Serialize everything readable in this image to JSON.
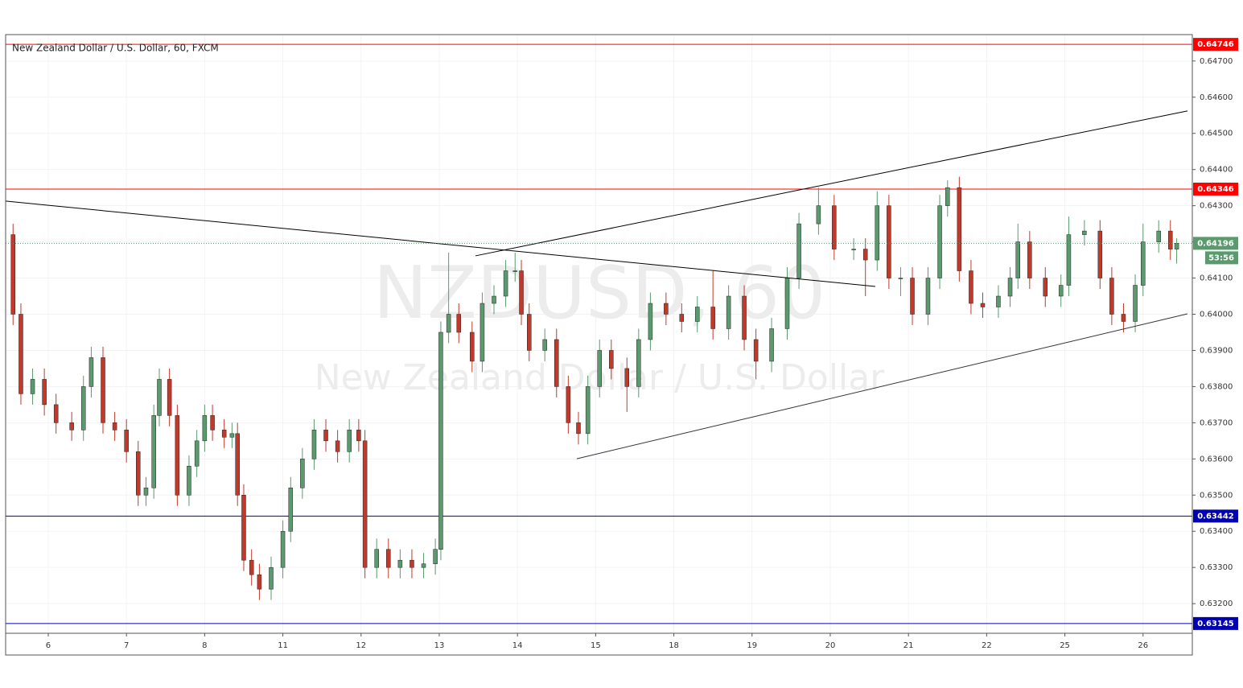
{
  "chart_data": {
    "type": "candlestick",
    "title": "New Zealand Dollar / U.S. Dollar, 60, FXCM",
    "watermark": "NZDUSD, 60",
    "watermark_subtitle": "New Zealand Dollar / U.S. Dollar",
    "up_color": "#5a9a6e",
    "down_color": "#c0392b",
    "grid": true,
    "xlim": [
      -0.545,
      14.63
    ],
    "xticks": [
      {
        "value": 0,
        "label": "6"
      },
      {
        "value": 1,
        "label": "7"
      },
      {
        "value": 2,
        "label": "8"
      },
      {
        "value": 3,
        "label": "11"
      },
      {
        "value": 4,
        "label": "12"
      },
      {
        "value": 5,
        "label": "13"
      },
      {
        "value": 6,
        "label": "14"
      },
      {
        "value": 7,
        "label": "15"
      },
      {
        "value": 8,
        "label": "18"
      },
      {
        "value": 9,
        "label": "19"
      },
      {
        "value": 10,
        "label": "20"
      },
      {
        "value": 11,
        "label": "21"
      },
      {
        "value": 12,
        "label": "22"
      },
      {
        "value": 13,
        "label": "25"
      },
      {
        "value": 14,
        "label": "26"
      }
    ],
    "ylim": [
      0.63118,
      0.64773
    ],
    "yticks": [
      {
        "value": 0.632,
        "label": "0.63200"
      },
      {
        "value": 0.633,
        "label": "0.63300"
      },
      {
        "value": 0.634,
        "label": "0.63400"
      },
      {
        "value": 0.635,
        "label": "0.63500"
      },
      {
        "value": 0.636,
        "label": "0.63600"
      },
      {
        "value": 0.637,
        "label": "0.63700"
      },
      {
        "value": 0.638,
        "label": "0.63800"
      },
      {
        "value": 0.639,
        "label": "0.63900"
      },
      {
        "value": 0.64,
        "label": "0.64000"
      },
      {
        "value": 0.641,
        "label": "0.64100"
      },
      {
        "value": 0.642,
        "label": "0.64200"
      },
      {
        "value": 0.643,
        "label": "0.64300"
      },
      {
        "value": 0.644,
        "label": "0.64400"
      },
      {
        "value": 0.645,
        "label": "0.64500"
      },
      {
        "value": 0.646,
        "label": "0.64600"
      },
      {
        "value": 0.647,
        "label": "0.64700"
      }
    ],
    "x": [
      -0.45,
      -0.35,
      -0.2,
      -0.05,
      0.1,
      0.3,
      0.45,
      0.55,
      0.7,
      0.85,
      1.0,
      1.15,
      1.25,
      1.35,
      1.42,
      1.55,
      1.65,
      1.8,
      1.9,
      2.0,
      2.1,
      2.25,
      2.35,
      2.42,
      2.5,
      2.6,
      2.7,
      2.85,
      3.0,
      3.1,
      3.25,
      3.4,
      3.55,
      3.7,
      3.85,
      3.97,
      4.05,
      4.2,
      4.35,
      4.5,
      4.65,
      4.8,
      4.95,
      5.02,
      5.12,
      5.25,
      5.42,
      5.55,
      5.7,
      5.85,
      5.97,
      6.05,
      6.15,
      6.35,
      6.5,
      6.65,
      6.78,
      6.9,
      7.05,
      7.2,
      7.4,
      7.55,
      7.7,
      7.9,
      8.1,
      8.3,
      8.5,
      8.7,
      8.9,
      9.05,
      9.25,
      9.45,
      9.6,
      9.85,
      10.05,
      10.3,
      10.45,
      10.6,
      10.75,
      10.9,
      11.05,
      11.25,
      11.4,
      11.5,
      11.65,
      11.8,
      11.95,
      12.15,
      12.3,
      12.4,
      12.55,
      12.75,
      12.95,
      13.05,
      13.25,
      13.45,
      13.6,
      13.75,
      13.9,
      14.0,
      14.2,
      14.35,
      14.43
    ],
    "open": [
      0.6422,
      0.64,
      0.6378,
      0.6382,
      0.6375,
      0.637,
      0.6368,
      0.638,
      0.6388,
      0.637,
      0.6368,
      0.6362,
      0.635,
      0.6352,
      0.6372,
      0.6382,
      0.6372,
      0.635,
      0.6358,
      0.6365,
      0.6372,
      0.6368,
      0.6366,
      0.6367,
      0.635,
      0.6332,
      0.6328,
      0.6324,
      0.633,
      0.634,
      0.6352,
      0.636,
      0.6368,
      0.6365,
      0.6362,
      0.6368,
      0.6365,
      0.633,
      0.6335,
      0.633,
      0.6332,
      0.633,
      0.6331,
      0.6335,
      0.6395,
      0.64,
      0.6395,
      0.6387,
      0.6403,
      0.6405,
      0.6412,
      0.6412,
      0.64,
      0.639,
      0.6393,
      0.638,
      0.637,
      0.6367,
      0.638,
      0.639,
      0.6385,
      0.638,
      0.6393,
      0.6403,
      0.64,
      0.6398,
      0.6402,
      0.6396,
      0.6405,
      0.6393,
      0.6387,
      0.6396,
      0.641,
      0.6425,
      0.643,
      0.6418,
      0.6418,
      0.6415,
      0.643,
      0.641,
      0.641,
      0.64,
      0.641,
      0.643,
      0.6435,
      0.6412,
      0.6403,
      0.6402,
      0.6405,
      0.641,
      0.642,
      0.641,
      0.6405,
      0.6408,
      0.6422,
      0.6423,
      0.641,
      0.64,
      0.6398,
      0.6408,
      0.642,
      0.6423,
      0.6418
    ],
    "high": [
      0.6425,
      0.6403,
      0.6385,
      0.6385,
      0.6378,
      0.6373,
      0.6383,
      0.6391,
      0.6391,
      0.6373,
      0.6371,
      0.6365,
      0.6355,
      0.6375,
      0.6385,
      0.6385,
      0.6375,
      0.6361,
      0.6368,
      0.6375,
      0.6375,
      0.6371,
      0.637,
      0.637,
      0.6353,
      0.6335,
      0.6331,
      0.6333,
      0.6343,
      0.6355,
      0.6363,
      0.6371,
      0.6371,
      0.6368,
      0.6371,
      0.6371,
      0.6368,
      0.6338,
      0.6338,
      0.6335,
      0.6335,
      0.6334,
      0.6338,
      0.6398,
      0.6417,
      0.6403,
      0.6398,
      0.6406,
      0.6408,
      0.6415,
      0.6417,
      0.6415,
      0.6403,
      0.6396,
      0.6396,
      0.6383,
      0.6373,
      0.6383,
      0.6393,
      0.6393,
      0.6388,
      0.6396,
      0.6406,
      0.6406,
      0.6403,
      0.6405,
      0.6412,
      0.6408,
      0.6408,
      0.6396,
      0.6399,
      0.6413,
      0.6428,
      0.6435,
      0.6433,
      0.6421,
      0.6421,
      0.6434,
      0.6433,
      0.6413,
      0.6413,
      0.6413,
      0.6433,
      0.6437,
      0.6438,
      0.6415,
      0.6406,
      0.6408,
      0.6413,
      0.6425,
      0.6423,
      0.6413,
      0.6411,
      0.6427,
      0.6426,
      0.6426,
      0.6413,
      0.6403,
      0.6411,
      0.6425,
      0.6426,
      0.6426,
      0.6421
    ],
    "low": [
      0.6397,
      0.6375,
      0.6375,
      0.6372,
      0.6367,
      0.6365,
      0.6365,
      0.6377,
      0.6367,
      0.6365,
      0.6359,
      0.6347,
      0.6347,
      0.6349,
      0.6369,
      0.6369,
      0.6347,
      0.6347,
      0.6355,
      0.6362,
      0.6365,
      0.6363,
      0.6363,
      0.6347,
      0.6329,
      0.6325,
      0.6321,
      0.6321,
      0.6327,
      0.6337,
      0.6349,
      0.6357,
      0.6362,
      0.6359,
      0.6359,
      0.6362,
      0.6327,
      0.6327,
      0.6327,
      0.6327,
      0.6327,
      0.6327,
      0.6328,
      0.6332,
      0.6392,
      0.6392,
      0.6384,
      0.6384,
      0.64,
      0.6402,
      0.6409,
      0.6397,
      0.6387,
      0.6387,
      0.6377,
      0.6367,
      0.6364,
      0.6364,
      0.6377,
      0.6382,
      0.6373,
      0.6377,
      0.639,
      0.6397,
      0.6395,
      0.6395,
      0.6393,
      0.6393,
      0.639,
      0.6382,
      0.6384,
      0.6393,
      0.6407,
      0.6422,
      0.6415,
      0.6415,
      0.6405,
      0.6412,
      0.6407,
      0.6405,
      0.6397,
      0.6397,
      0.6407,
      0.6427,
      0.6409,
      0.64,
      0.6399,
      0.6399,
      0.6402,
      0.6407,
      0.6407,
      0.6402,
      0.6402,
      0.6405,
      0.6419,
      0.6407,
      0.6397,
      0.6395,
      0.6395,
      0.6405,
      0.6417,
      0.6415,
      0.6414
    ],
    "close": [
      0.64,
      0.6378,
      0.6382,
      0.6375,
      0.637,
      0.6368,
      0.638,
      0.6388,
      0.637,
      0.6368,
      0.6362,
      0.635,
      0.6352,
      0.6372,
      0.6382,
      0.6372,
      0.635,
      0.6358,
      0.6365,
      0.6372,
      0.6368,
      0.6366,
      0.6367,
      0.635,
      0.6332,
      0.6328,
      0.6324,
      0.633,
      0.634,
      0.6352,
      0.636,
      0.6368,
      0.6365,
      0.6362,
      0.6368,
      0.6365,
      0.633,
      0.6335,
      0.633,
      0.6332,
      0.633,
      0.6331,
      0.6335,
      0.6395,
      0.64,
      0.6395,
      0.6387,
      0.6403,
      0.6405,
      0.6412,
      0.6412,
      0.64,
      0.639,
      0.6393,
      0.638,
      0.637,
      0.6367,
      0.638,
      0.639,
      0.6385,
      0.638,
      0.6393,
      0.6403,
      0.64,
      0.6398,
      0.6402,
      0.6396,
      0.6405,
      0.6393,
      0.6387,
      0.6396,
      0.641,
      0.6425,
      0.643,
      0.6418,
      0.6418,
      0.6415,
      0.643,
      0.641,
      0.641,
      0.64,
      0.641,
      0.643,
      0.6435,
      0.6412,
      0.6403,
      0.6402,
      0.6405,
      0.641,
      0.642,
      0.641,
      0.6405,
      0.6408,
      0.6422,
      0.6423,
      0.641,
      0.64,
      0.6398,
      0.6408,
      0.642,
      0.6423,
      0.6418,
      0.64196
    ],
    "levels": [
      {
        "value": 0.64746,
        "color": "#ff0000"
      },
      {
        "value": 0.64346,
        "color": "#ff0000"
      },
      {
        "value": 0.63442,
        "color": "#0000b0"
      },
      {
        "value": 0.63145,
        "color": "#0000b0"
      }
    ],
    "last_price": 0.64196,
    "last_price_color": "#5a9a6e",
    "countdown": "53:56",
    "trend_lines": [
      {
        "x": [
          -0.545,
          10.576
        ],
        "y": [
          0.643127,
          0.640768
        ],
        "color": "#000000"
      },
      {
        "x": [
          5.463,
          14.568
        ],
        "y": [
          0.641614,
          0.64562
        ],
        "color": "#000000"
      },
      {
        "x": [
          6.759,
          14.568
        ],
        "y": [
          0.636005,
          0.640011
        ],
        "color": "#333333"
      }
    ]
  }
}
